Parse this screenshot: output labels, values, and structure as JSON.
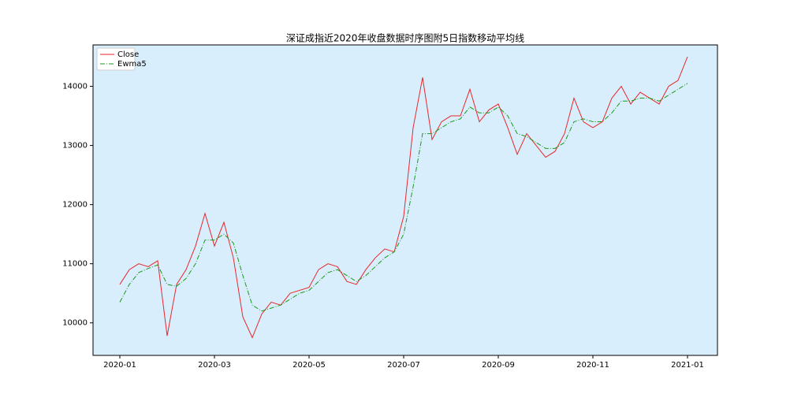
{
  "chart_data": {
    "type": "line",
    "title": "深证成指近2020年收盘数据时序图附5日指数移动平均线",
    "categories": [
      "2020-01",
      null,
      null,
      null,
      null,
      null,
      null,
      null,
      null,
      null,
      "2020-03",
      null,
      null,
      null,
      null,
      null,
      null,
      null,
      null,
      null,
      "2020-05",
      null,
      null,
      null,
      null,
      null,
      null,
      null,
      null,
      null,
      "2020-07",
      null,
      null,
      null,
      null,
      null,
      null,
      null,
      null,
      null,
      "2020-09",
      null,
      null,
      null,
      null,
      null,
      null,
      null,
      null,
      null,
      "2020-11",
      null,
      null,
      null,
      null,
      null,
      null,
      null,
      null,
      null,
      "2021-01"
    ],
    "series": [
      {
        "name": "Close",
        "color": "#e8262b",
        "dash": "solid",
        "values": [
          10650,
          10900,
          11000,
          10950,
          11050,
          9780,
          10650,
          10900,
          11300,
          11850,
          11300,
          11700,
          11100,
          10100,
          9750,
          10150,
          10350,
          10300,
          10500,
          10550,
          10600,
          10900,
          11000,
          10950,
          10700,
          10650,
          10900,
          11100,
          11250,
          11200,
          11800,
          13300,
          14150,
          13100,
          13400,
          13500,
          13500,
          13950,
          13400,
          13600,
          13700,
          13300,
          12850,
          13200,
          13000,
          12800,
          12900,
          13200,
          13800,
          13400,
          13300,
          13400,
          13800,
          14000,
          13700,
          13900,
          13800,
          13700,
          14000,
          14100,
          14500
        ]
      },
      {
        "name": "Ewma5",
        "color": "#1a9a1a",
        "dash": "dashdot",
        "values": [
          10350,
          10650,
          10850,
          10920,
          10980,
          10650,
          10620,
          10750,
          11000,
          11400,
          11400,
          11500,
          11350,
          10800,
          10300,
          10200,
          10250,
          10300,
          10400,
          10500,
          10550,
          10700,
          10850,
          10900,
          10800,
          10700,
          10800,
          10950,
          11100,
          11200,
          11500,
          12300,
          13200,
          13200,
          13300,
          13400,
          13450,
          13650,
          13550,
          13550,
          13650,
          13500,
          13200,
          13150,
          13050,
          12950,
          12950,
          13050,
          13400,
          13450,
          13400,
          13400,
          13550,
          13750,
          13750,
          13800,
          13800,
          13750,
          13850,
          13950,
          14050
        ]
      }
    ],
    "ylim": [
      9450,
      14700
    ],
    "yticks": [
      10000,
      11000,
      12000,
      13000,
      14000
    ],
    "legend": "upper left",
    "background": "#d9eefc"
  }
}
